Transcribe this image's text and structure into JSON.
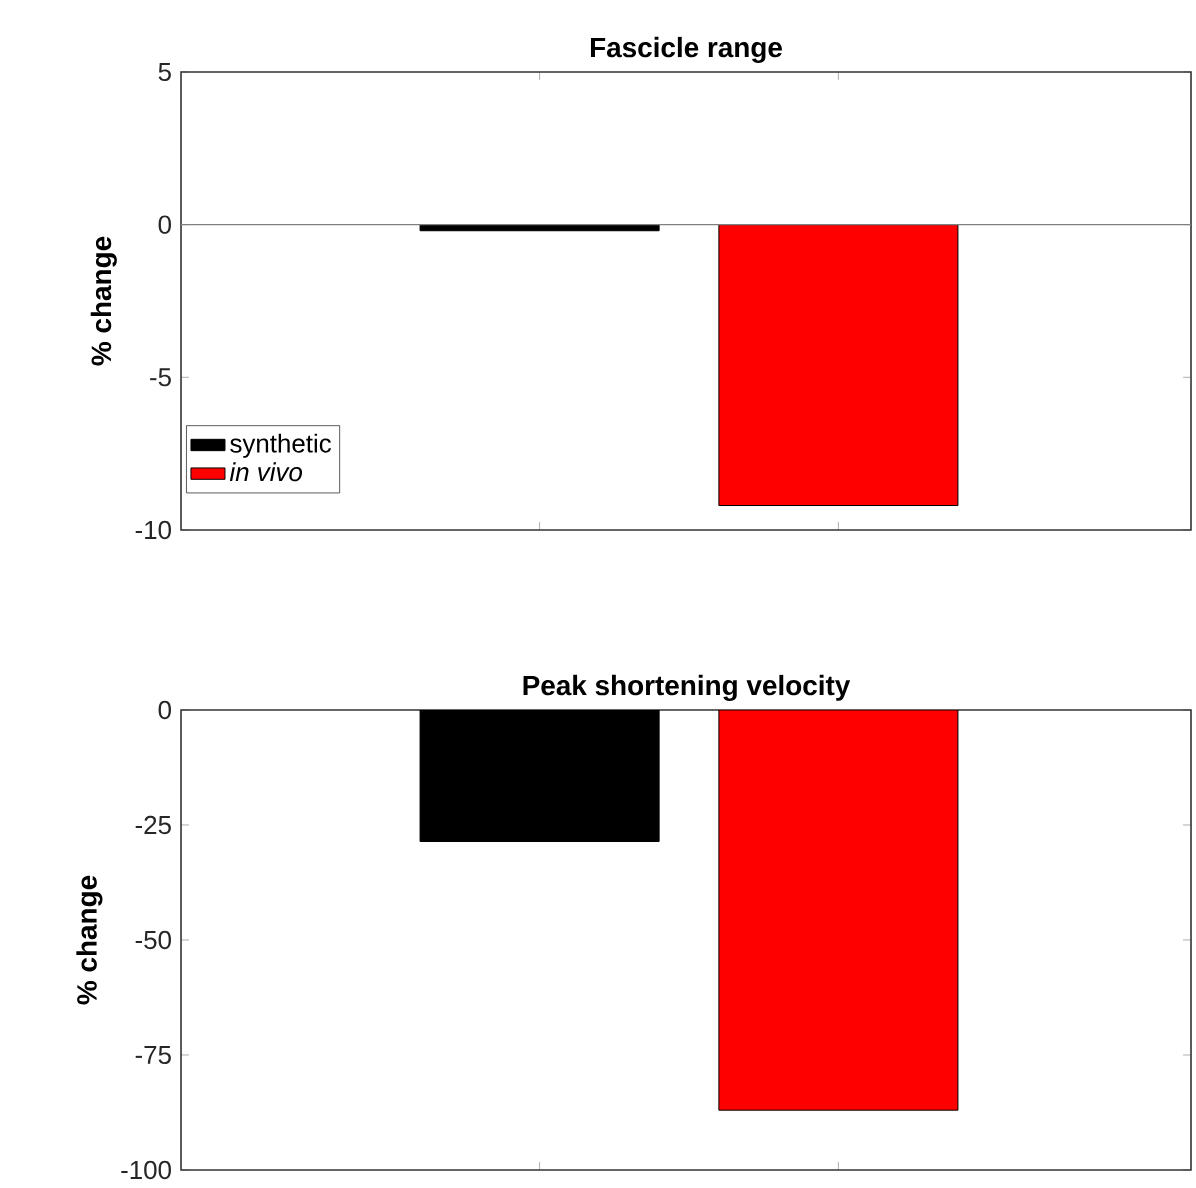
{
  "chart_data": [
    {
      "type": "bar",
      "title": "Fascicle range",
      "ylabel": "% change",
      "categories": [
        null,
        null
      ],
      "series": [
        {
          "name": "synthetic",
          "color": "#000000",
          "values": [
            -0.2,
            null
          ]
        },
        {
          "name": "*in vivo*",
          "color": "#ff0000",
          "values": [
            null,
            -9.2
          ]
        }
      ],
      "ylim": [
        -10,
        5
      ],
      "yticks": [
        -10,
        -5,
        0,
        5
      ],
      "tick_labels": "y",
      "legend": "bottom left",
      "ref_lines": [
        {
          "axis": "y",
          "value": 0,
          "color": "#808080"
        }
      ]
    },
    {
      "type": "bar",
      "title": "Peak shortening velocity",
      "ylabel": "% change",
      "categories": [
        null,
        null
      ],
      "series": [
        {
          "color": "#000000",
          "values": [
            -28.6,
            null
          ]
        },
        {
          "color": "#ff0000",
          "values": [
            null,
            -87
          ]
        }
      ],
      "ylim": [
        -100,
        0
      ],
      "yticks": [
        -100,
        -75,
        -50,
        -25,
        0
      ],
      "tick_labels": "y"
    }
  ]
}
